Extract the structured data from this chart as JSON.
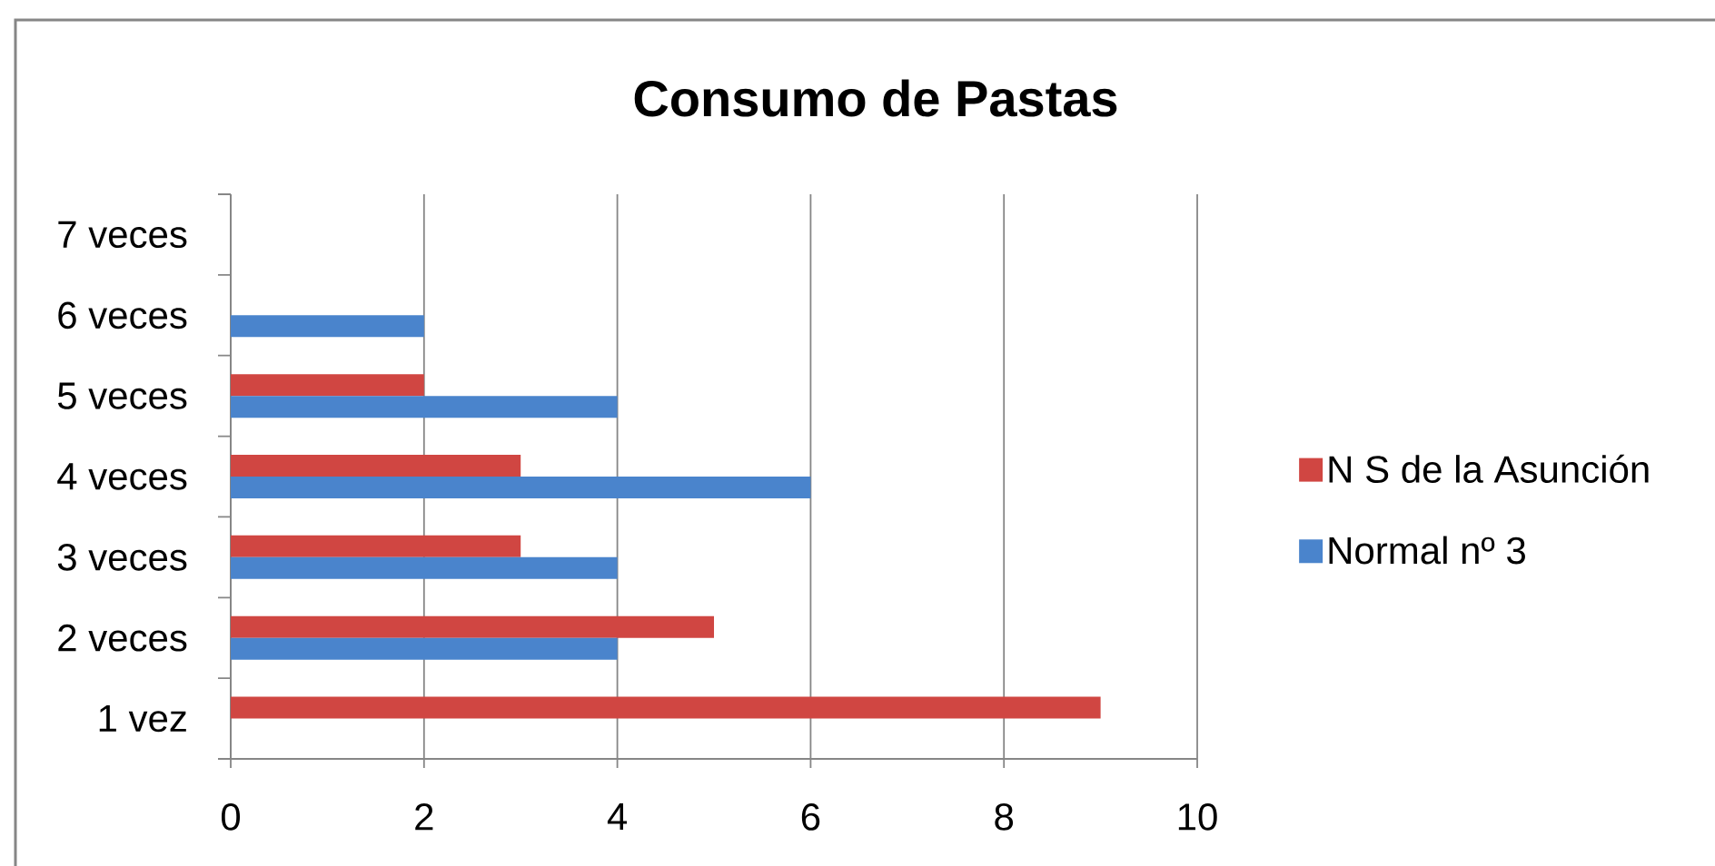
{
  "chart_data": {
    "type": "bar",
    "orientation": "horizontal",
    "title": "Consumo de Pastas",
    "categories": [
      "7 veces",
      "6 veces",
      "5 veces",
      "4 veces",
      "3 veces",
      "2 veces",
      "1 vez"
    ],
    "series": [
      {
        "name": "N S de la Asunción",
        "color": "#d04642",
        "values": [
          null,
          null,
          2,
          3,
          3,
          5,
          9
        ]
      },
      {
        "name": "Normal nº 3",
        "color": "#4a84cc",
        "values": [
          null,
          2,
          4,
          6,
          4,
          4,
          null
        ]
      }
    ],
    "xlim": [
      0,
      10
    ],
    "xticks": [
      0,
      2,
      4,
      6,
      8,
      10
    ],
    "grid": "x",
    "legend": "right"
  }
}
